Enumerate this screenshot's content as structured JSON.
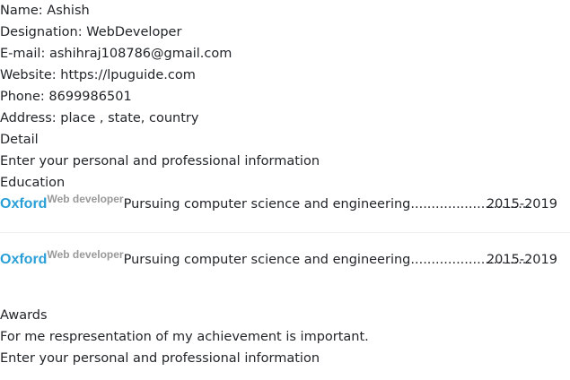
{
  "profile": {
    "name": "Name: Ashish",
    "designation": "Designation: WebDeveloper",
    "email": "E-mail: ashihraj108786@gmail.com",
    "website": "Website: https://lpuguide.com",
    "phone": "Phone: 8699986501",
    "address": "Address: place , state, country"
  },
  "detail": {
    "heading": "Detail",
    "text": "Enter your personal and professional information"
  },
  "education": {
    "heading": "Education",
    "entries": [
      {
        "school": "Oxford",
        "role": "Web developer",
        "description": "Pursuing computer science and engineering.............................",
        "period": "2015-2019"
      },
      {
        "school": "Oxford",
        "role": "Web developer",
        "description": "Pursuing computer science and engineering.............................",
        "period": "2015-2019"
      }
    ]
  },
  "awards": {
    "heading": "Awards",
    "text": "For me respresentation of my achievement is important.",
    "text2": "Enter your personal and professional information"
  }
}
